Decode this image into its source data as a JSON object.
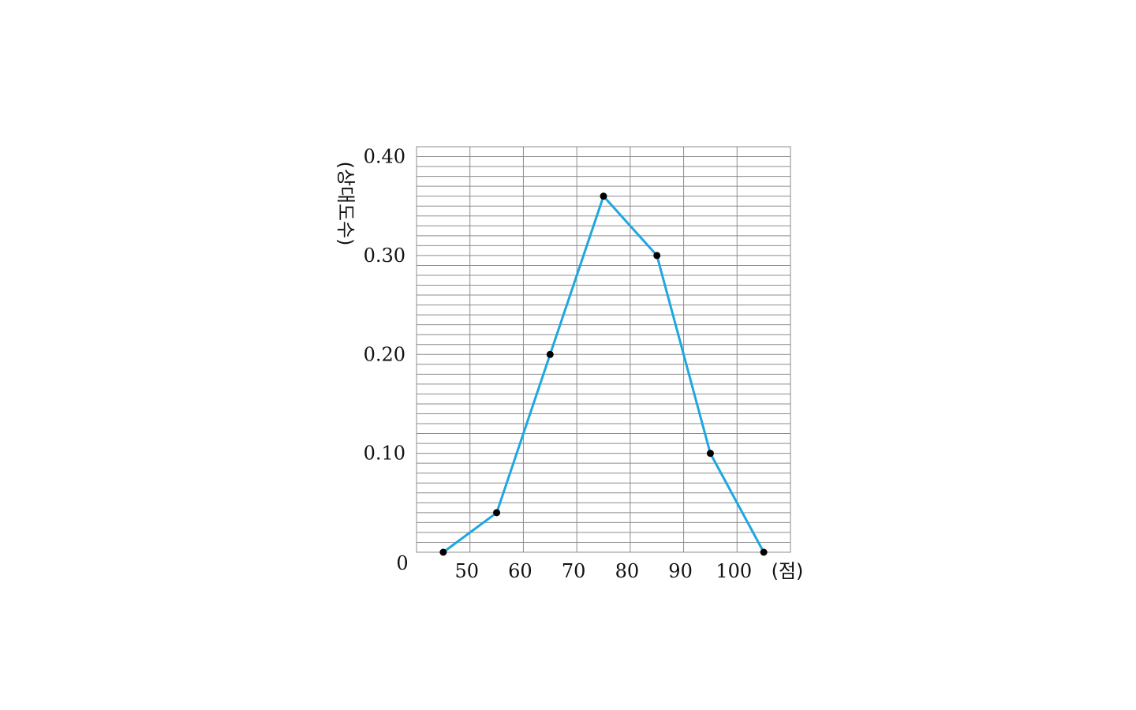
{
  "chart_data": {
    "type": "line",
    "title": "",
    "xlabel": "(점)",
    "ylabel": "(상대도수)",
    "ylabel_chars": [
      "(",
      "상",
      "대",
      "도",
      "수",
      ")"
    ],
    "origin_label": "0",
    "x_ticks": [
      50,
      60,
      70,
      80,
      90,
      100
    ],
    "x_tick_labels": [
      "50",
      "60",
      "70",
      "80",
      "90",
      "100"
    ],
    "y_ticks": [
      0.1,
      0.2,
      0.3,
      0.4
    ],
    "y_tick_labels": [
      "0.10",
      "0.20",
      "0.30",
      "0.40"
    ],
    "xlim": [
      40,
      110
    ],
    "ylim": [
      0,
      0.41
    ],
    "grid": true,
    "grid_minor_y_step": 0.01,
    "grid_x_step": 10,
    "series": [
      {
        "x": [
          45,
          55,
          65,
          75,
          85,
          95,
          105
        ],
        "y": [
          0,
          0.04,
          0.2,
          0.36,
          0.3,
          0.1,
          0
        ],
        "color": "#1ea7e1"
      }
    ],
    "marker_color": "#000000"
  }
}
